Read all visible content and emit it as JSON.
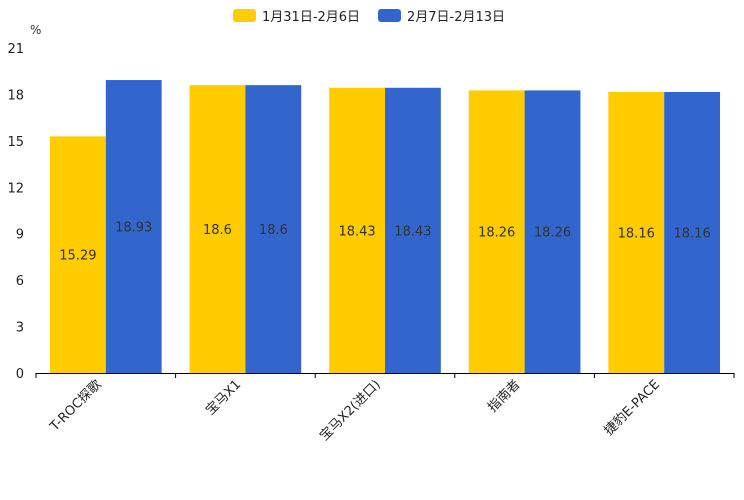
{
  "chart_data": {
    "type": "bar",
    "title": "",
    "ylabel": "%",
    "xlabel": "",
    "ylim": [
      0,
      21
    ],
    "yticks": [
      0,
      3,
      6,
      9,
      12,
      15,
      18,
      21
    ],
    "grid": false,
    "legend_position": "top-center",
    "categories": [
      "T-ROC探歌",
      "宝马X1",
      "宝马X2(进口)",
      "指南者",
      "捷豹E-PACE"
    ],
    "series": [
      {
        "name": "1月31日-2月6日",
        "color": "#FFCC00",
        "values": [
          15.29,
          18.6,
          18.43,
          18.26,
          18.16
        ]
      },
      {
        "name": "2月7日-2月13日",
        "color": "#3366CC",
        "values": [
          18.93,
          18.6,
          18.43,
          18.26,
          18.16
        ]
      }
    ]
  }
}
